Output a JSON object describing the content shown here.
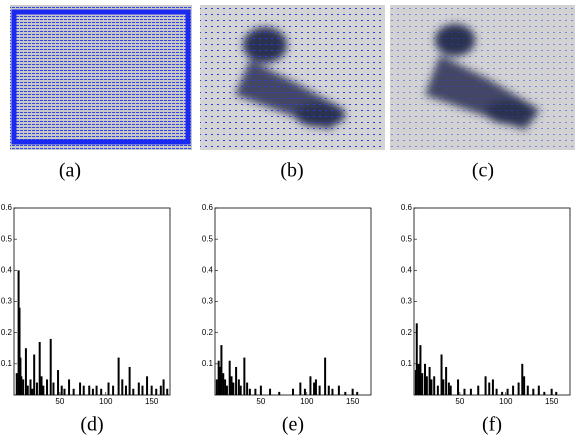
{
  "images": [
    {
      "caption": "(a)"
    },
    {
      "caption": "(b)"
    },
    {
      "caption": "(c)"
    }
  ],
  "chart_data": [
    {
      "type": "bar",
      "caption": "(d)",
      "color": "#000000",
      "xlim": [
        0,
        170
      ],
      "ylim": [
        0,
        0.6
      ],
      "xticks": [
        50,
        100,
        150
      ],
      "yticks": [
        0.1,
        0.2,
        0.3,
        0.4,
        0.5,
        0.6
      ],
      "x": [
        3,
        5,
        6,
        7,
        8,
        10,
        13,
        15,
        18,
        20,
        22,
        25,
        28,
        30,
        32,
        36,
        40,
        43,
        48,
        52,
        55,
        60,
        65,
        72,
        76,
        82,
        86,
        90,
        95,
        103,
        108,
        114,
        118,
        122,
        126,
        130,
        136,
        140,
        145,
        150,
        155,
        160,
        163,
        167
      ],
      "values": [
        0.07,
        0.4,
        0.28,
        0.12,
        0.06,
        0.05,
        0.15,
        0.03,
        0.05,
        0.02,
        0.13,
        0.04,
        0.17,
        0.06,
        0.03,
        0.05,
        0.18,
        0.04,
        0.08,
        0.03,
        0.02,
        0.05,
        0.02,
        0.04,
        0.03,
        0.03,
        0.02,
        0.03,
        0.02,
        0.04,
        0.03,
        0.12,
        0.05,
        0.03,
        0.09,
        0.02,
        0.04,
        0.03,
        0.06,
        0.03,
        0.02,
        0.03,
        0.05,
        0.02
      ]
    },
    {
      "type": "bar",
      "caption": "(e)",
      "color": "#000000",
      "xlim": [
        0,
        170
      ],
      "ylim": [
        0,
        0.6
      ],
      "xticks": [
        50,
        100,
        150
      ],
      "yticks": [
        0.1,
        0.2,
        0.3,
        0.4,
        0.5,
        0.6
      ],
      "x": [
        2,
        4,
        5,
        7,
        9,
        11,
        13,
        16,
        18,
        20,
        23,
        26,
        28,
        32,
        35,
        38,
        44,
        50,
        60,
        70,
        85,
        93,
        98,
        104,
        108,
        110,
        114,
        120,
        124,
        128,
        135,
        142,
        150,
        155
      ],
      "values": [
        0.05,
        0.11,
        0.09,
        0.16,
        0.07,
        0.05,
        0.03,
        0.11,
        0.06,
        0.04,
        0.09,
        0.05,
        0.03,
        0.12,
        0.04,
        0.02,
        0.02,
        0.03,
        0.02,
        0.01,
        0.02,
        0.04,
        0.02,
        0.06,
        0.04,
        0.05,
        0.03,
        0.12,
        0.03,
        0.02,
        0.03,
        0.01,
        0.02,
        0.01
      ]
    },
    {
      "type": "bar",
      "caption": "(f)",
      "color": "#000000",
      "xlim": [
        0,
        170
      ],
      "ylim": [
        0,
        0.6
      ],
      "xticks": [
        50,
        100,
        150
      ],
      "yticks": [
        0.1,
        0.2,
        0.3,
        0.4,
        0.5,
        0.6
      ],
      "x": [
        2,
        3,
        5,
        7,
        9,
        12,
        14,
        17,
        19,
        22,
        26,
        30,
        32,
        35,
        38,
        40,
        48,
        55,
        62,
        70,
        78,
        82,
        86,
        90,
        96,
        102,
        108,
        114,
        118,
        120,
        124,
        130,
        136,
        142,
        150,
        155
      ],
      "values": [
        0.08,
        0.23,
        0.1,
        0.16,
        0.07,
        0.1,
        0.06,
        0.09,
        0.05,
        0.06,
        0.03,
        0.13,
        0.05,
        0.09,
        0.04,
        0.03,
        0.05,
        0.02,
        0.02,
        0.03,
        0.06,
        0.04,
        0.05,
        0.02,
        0.01,
        0.02,
        0.03,
        0.04,
        0.1,
        0.06,
        0.03,
        0.02,
        0.03,
        0.01,
        0.02,
        0.01
      ]
    }
  ]
}
